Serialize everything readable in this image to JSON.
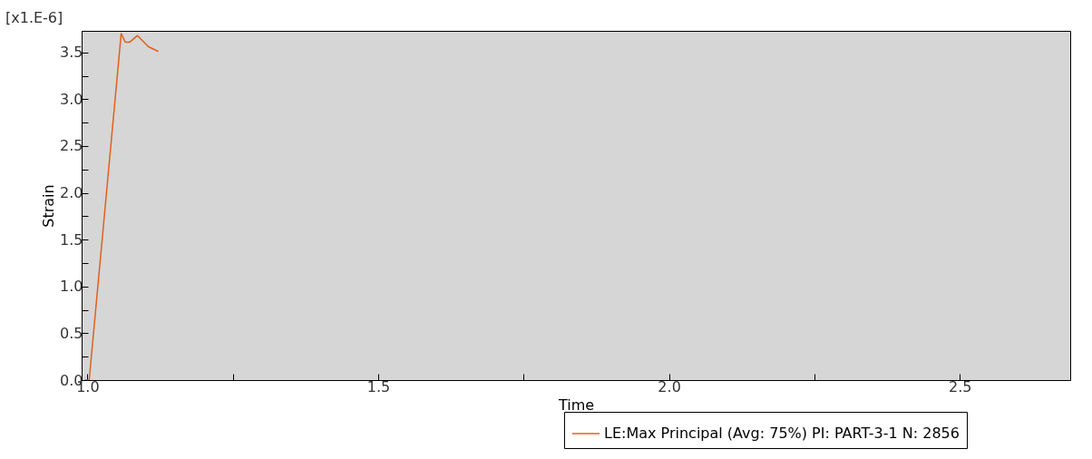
{
  "chart_data": {
    "type": "line",
    "xlabel": "Time",
    "ylabel": "Strain",
    "annotations": [
      "[x1.E-6]"
    ],
    "series": [
      {
        "name": "LE:Max Principal (Avg: 75%) PI: PART-3-1 N: 2856",
        "color": "#e0601c",
        "x": [
          0.995,
          1.0,
          1.003,
          1.058,
          1.065,
          1.073,
          1.086,
          1.105,
          1.122
        ],
        "values": [
          0,
          0,
          0,
          3.7,
          3.61,
          3.61,
          3.68,
          3.56,
          3.51
        ]
      }
    ],
    "xlim": [
      0.99,
      2.69
    ],
    "ylim": [
      0,
      3.73
    ],
    "xticks": [
      {
        "value": 1.0,
        "label": "1.0"
      },
      {
        "value": 1.25,
        "label": null
      },
      {
        "value": 1.5,
        "label": "1.5"
      },
      {
        "value": 1.75,
        "label": null
      },
      {
        "value": 2.0,
        "label": "2.0"
      },
      {
        "value": 2.25,
        "label": null
      },
      {
        "value": 2.5,
        "label": "2.5"
      }
    ],
    "yticks": [
      {
        "value": 0,
        "label": "0.0"
      },
      {
        "value": 0.25,
        "label": null
      },
      {
        "value": 0.5,
        "label": "0.5"
      },
      {
        "value": 0.75,
        "label": null
      },
      {
        "value": 1.0,
        "label": "1.0"
      },
      {
        "value": 1.25,
        "label": null
      },
      {
        "value": 1.5,
        "label": "1.5"
      },
      {
        "value": 1.75,
        "label": null
      },
      {
        "value": 2.0,
        "label": "2.0"
      },
      {
        "value": 2.25,
        "label": null
      },
      {
        "value": 2.5,
        "label": "2.5"
      },
      {
        "value": 2.75,
        "label": null
      },
      {
        "value": 3.0,
        "label": "3.0"
      },
      {
        "value": 3.25,
        "label": null
      },
      {
        "value": 3.5,
        "label": "3.5"
      }
    ],
    "grid": false,
    "legend": "bottom right"
  }
}
